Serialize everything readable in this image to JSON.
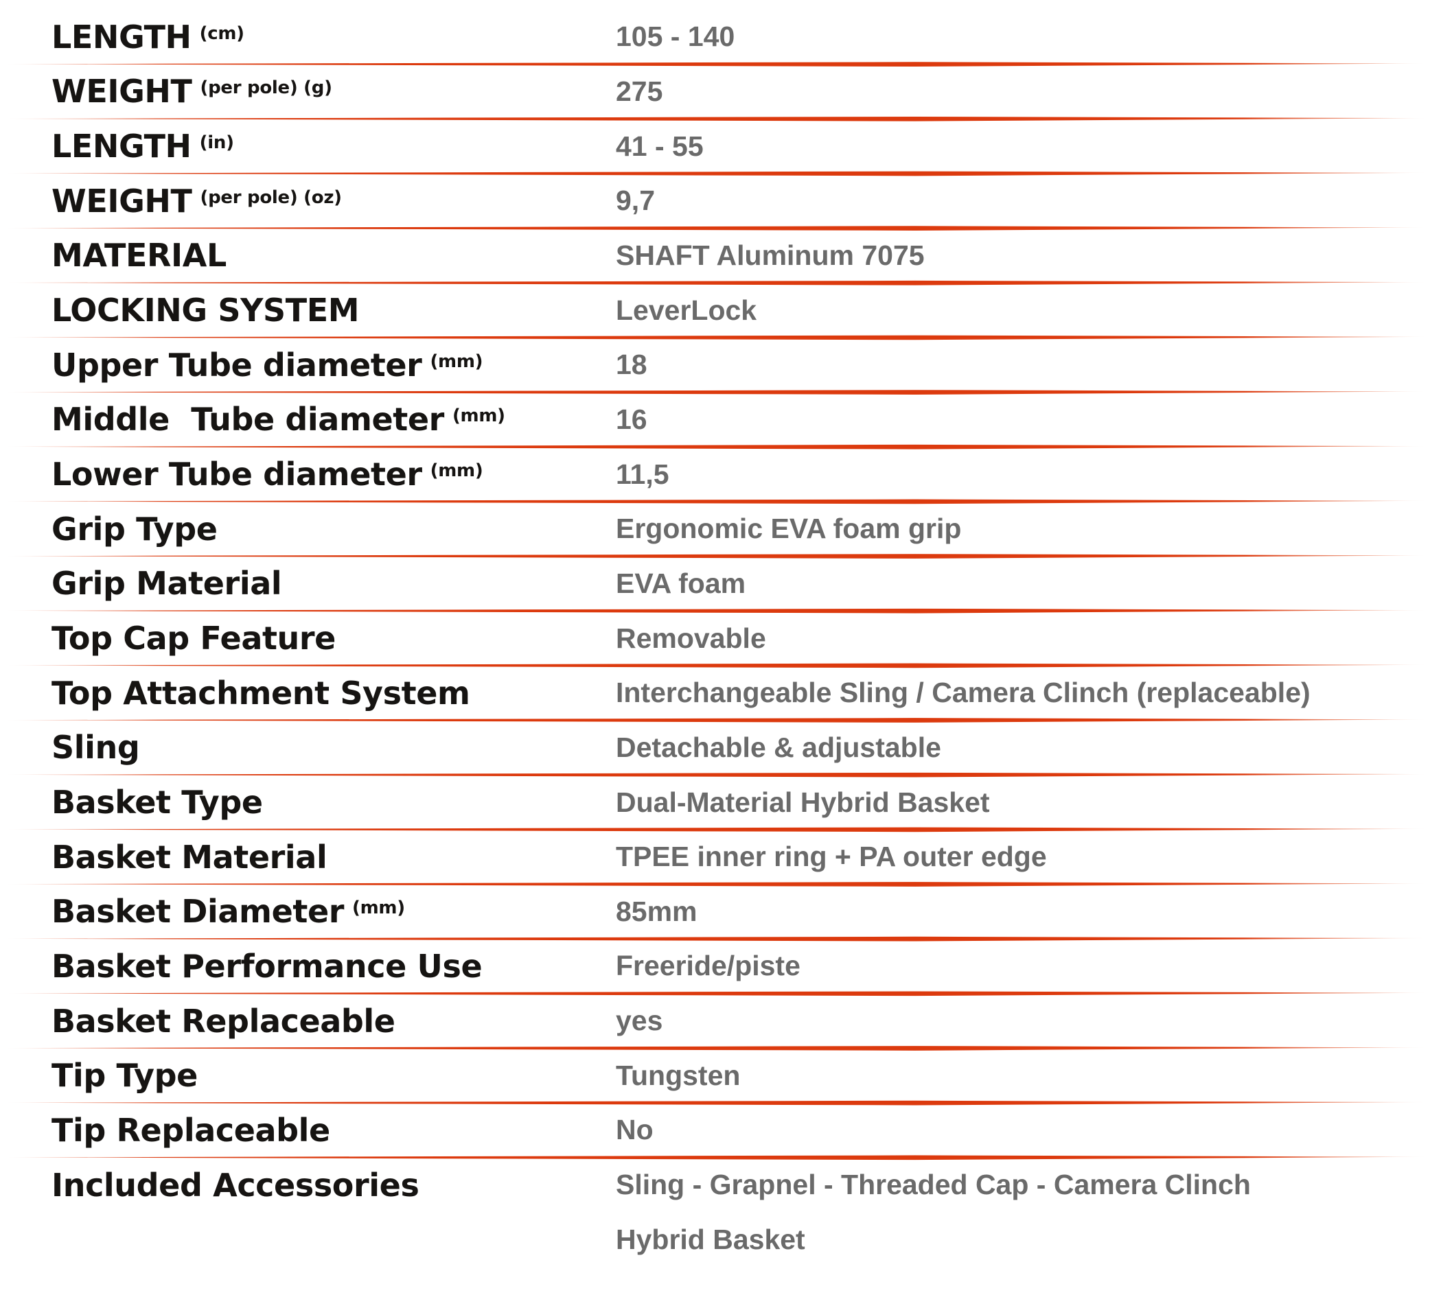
{
  "table": {
    "colors": {
      "divider": "#dc3a0e",
      "label_text": "#161412",
      "value_text": "#6a6a6a",
      "background": "#ffffff"
    },
    "rows": [
      {
        "label": "LENGTH",
        "sup": "(cm)",
        "values": [
          "105 - 140"
        ]
      },
      {
        "label": "WEIGHT",
        "sup": "(per pole) (g)",
        "values": [
          "275"
        ]
      },
      {
        "label": "LENGTH",
        "sup": "(in)",
        "values": [
          "41 - 55"
        ]
      },
      {
        "label": "WEIGHT",
        "sup": "(per pole) (oz)",
        "values": [
          "9,7"
        ]
      },
      {
        "label": "MATERIAL",
        "sup": "",
        "values": [
          "SHAFT Aluminum 7075"
        ]
      },
      {
        "label": "LOCKING SYSTEM",
        "sup": "",
        "values": [
          "LeverLock"
        ]
      },
      {
        "label": "Upper Tube diameter",
        "sup": "(mm)",
        "values": [
          "18"
        ]
      },
      {
        "label": "Middle  Tube diameter",
        "sup": "(mm)",
        "values": [
          "16"
        ]
      },
      {
        "label": "Lower Tube diameter",
        "sup": "(mm)",
        "values": [
          "11,5"
        ]
      },
      {
        "label": "Grip Type",
        "sup": "",
        "values": [
          "Ergonomic EVA foam grip"
        ]
      },
      {
        "label": "Grip Material",
        "sup": "",
        "values": [
          "EVA foam"
        ]
      },
      {
        "label": "Top Cap Feature",
        "sup": "",
        "values": [
          "Removable"
        ]
      },
      {
        "label": "Top Attachment System",
        "sup": "",
        "values": [
          "Interchangeable Sling / Camera Clinch (replaceable)"
        ]
      },
      {
        "label": "Sling",
        "sup": "",
        "values": [
          "Detachable & adjustable"
        ]
      },
      {
        "label": "Basket Type",
        "sup": "",
        "values": [
          "Dual-Material Hybrid Basket"
        ]
      },
      {
        "label": "Basket Material",
        "sup": "",
        "values": [
          "TPEE inner ring + PA outer edge"
        ]
      },
      {
        "label": "Basket Diameter",
        "sup": "(mm)",
        "values": [
          "85mm"
        ]
      },
      {
        "label": "Basket Performance Use",
        "sup": "",
        "values": [
          "Freeride/piste"
        ]
      },
      {
        "label": "Basket Replaceable",
        "sup": "",
        "values": [
          "yes"
        ]
      },
      {
        "label": "Tip Type",
        "sup": "",
        "values": [
          "Tungsten"
        ]
      },
      {
        "label": "Tip Replaceable",
        "sup": "",
        "values": [
          "No"
        ]
      },
      {
        "label": "Included Accessories",
        "sup": "",
        "values": [
          "Sling - Grapnel - Threaded Cap - Camera Clinch",
          "Hybrid Basket"
        ]
      }
    ]
  }
}
